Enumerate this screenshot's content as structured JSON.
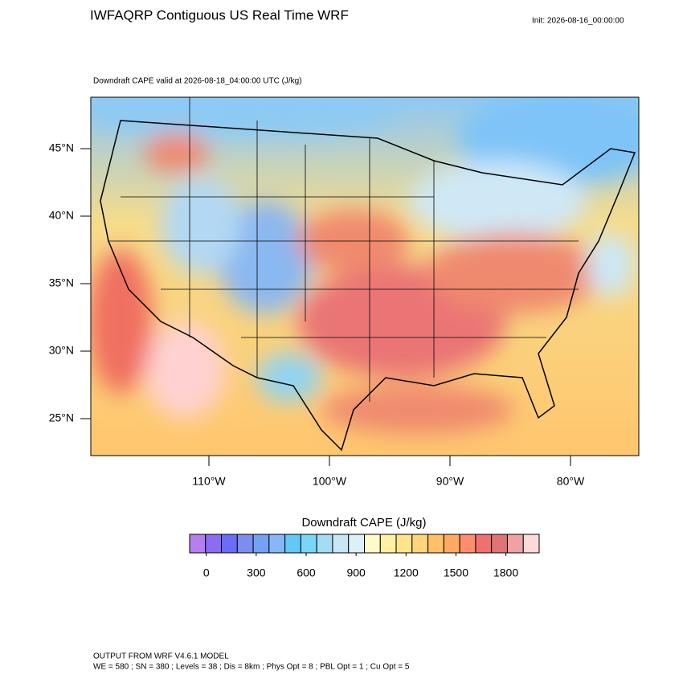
{
  "header": {
    "title": "IWFAQRP Contiguous US Real Time WRF",
    "init": "Init: 2026-08-16_00:00:00",
    "subtitle": "Downdraft CAPE valid at 2026-08-18_04:00:00 UTC   (J/kg)"
  },
  "map": {
    "lat_labels": [
      {
        "value": 45,
        "label": "45°N"
      },
      {
        "value": 40,
        "label": "40°N"
      },
      {
        "value": 35,
        "label": "35°N"
      },
      {
        "value": 30,
        "label": "30°N"
      },
      {
        "value": 25,
        "label": "25°N"
      }
    ],
    "lon_labels": [
      {
        "value": -110,
        "label": "110°W"
      },
      {
        "value": -100,
        "label": "100°W"
      },
      {
        "value": -90,
        "label": "90°W"
      },
      {
        "value": -80,
        "label": "80°W"
      }
    ]
  },
  "colorbar": {
    "title": "Downdraft CAPE  (J/kg)",
    "range": [
      -100,
      2000
    ],
    "ticks": [
      0,
      300,
      600,
      900,
      1200,
      1500,
      1800
    ],
    "colors": [
      "#b47ff0",
      "#8a6cf5",
      "#6c6cf8",
      "#7b8ef0",
      "#74a2f2",
      "#86b8f8",
      "#62c8f6",
      "#7ad6f6",
      "#a4dcf4",
      "#c8e6f4",
      "#dcf0f8",
      "#fffbc8",
      "#fff0a2",
      "#ffe48c",
      "#ffd47a",
      "#ffc068",
      "#ffaa62",
      "#ff8c6e",
      "#f07070",
      "#e07474",
      "#f0a2a2",
      "#ffd8d8"
    ]
  },
  "footer": {
    "line1": "OUTPUT FROM WRF V4.6.1 MODEL",
    "line2": "WE = 580 ; SN = 380 ; Levels = 38 ; Dis = 8km ; Phys Opt = 8 ; PBL Opt = 1 ; Cu Opt = 5"
  }
}
